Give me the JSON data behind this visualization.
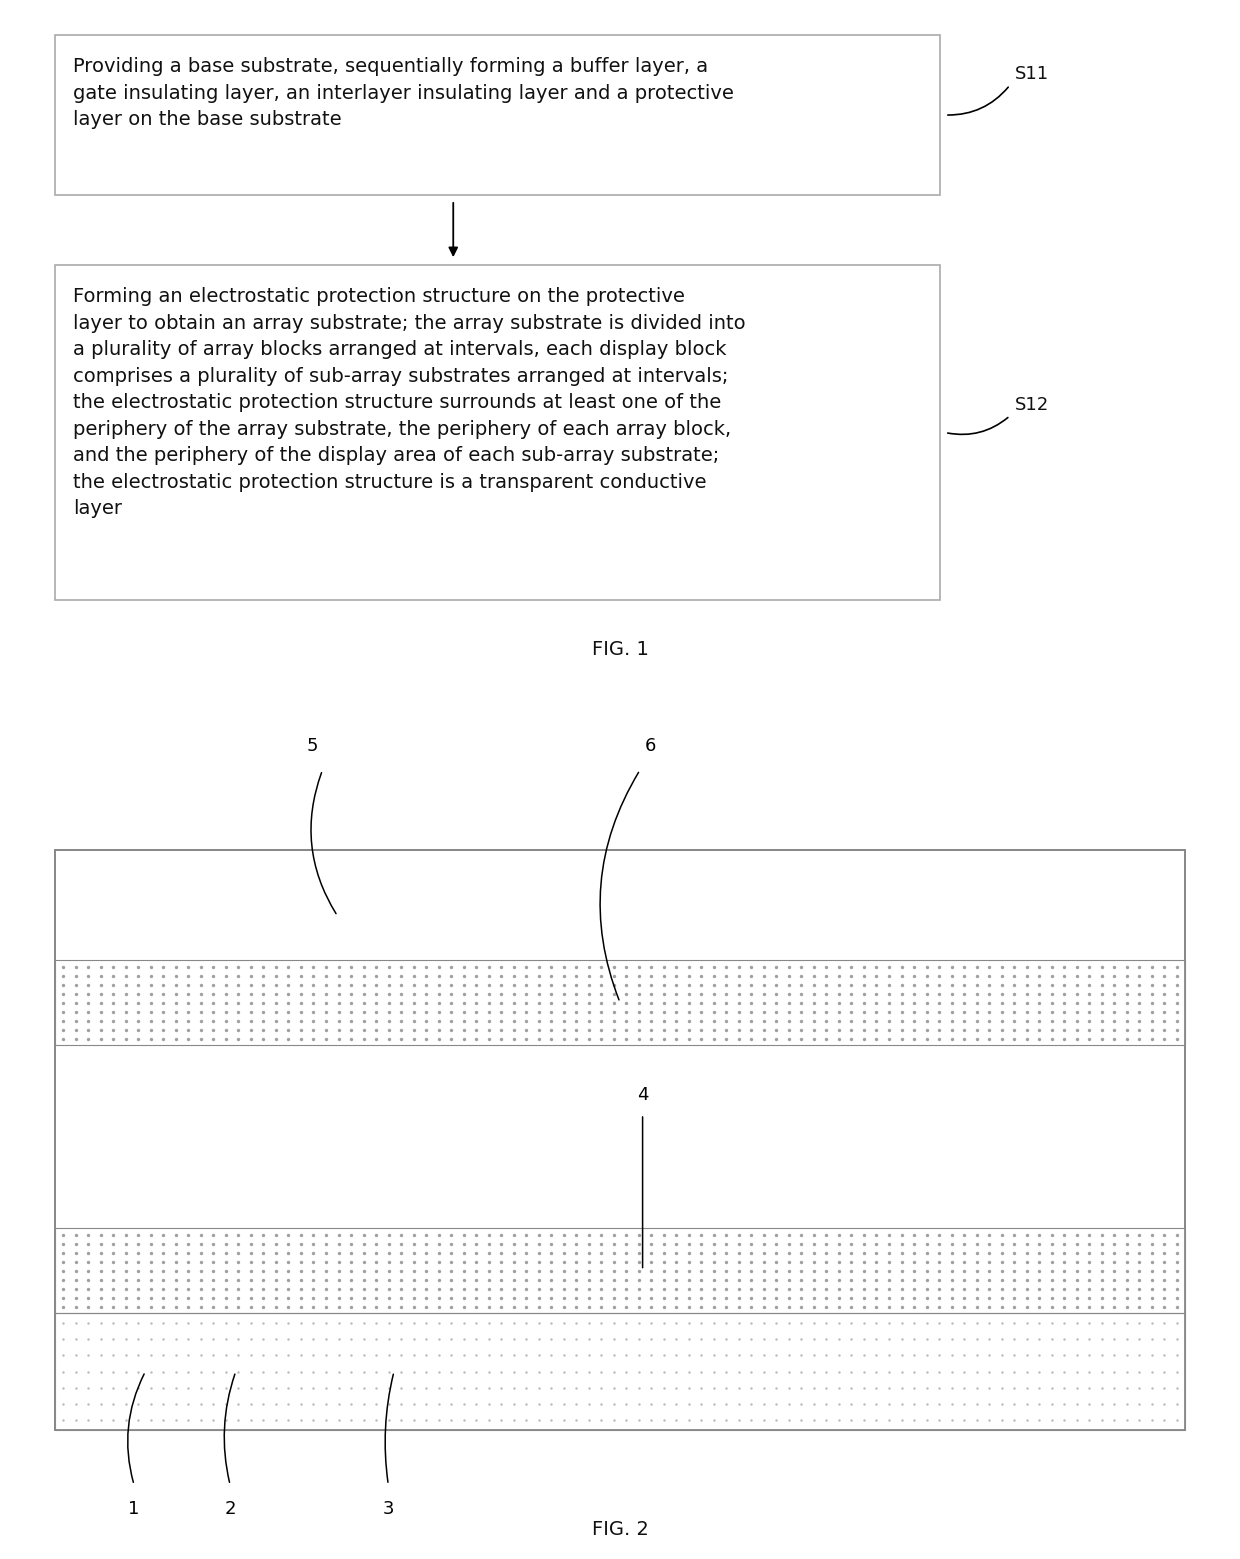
{
  "fig1": {
    "box1_text": "Providing a base substrate, sequentially forming a buffer layer, a\ngate insulating layer, an interlayer insulating layer and a protective\nlayer on the base substrate",
    "box1_label": "S11",
    "box2_text": "Forming an electrostatic protection structure on the protective\nlayer to obtain an array substrate; the array substrate is divided into\na plurality of array blocks arranged at intervals, each display block\ncomprises a plurality of sub-array substrates arranged at intervals;\nthe electrostatic protection structure surrounds at least one of the\nperiphery of the array substrate, the periphery of each array block,\nand the periphery of the display area of each sub-array substrate;\nthe electrostatic protection structure is a transparent conductive\nlayer",
    "box1_label_text": "S11",
    "box2_label_text": "S12",
    "fig_label": "FIG. 1"
  },
  "fig2": {
    "fig_label": "FIG. 2"
  },
  "background_color": "#ffffff",
  "text_color": "#111111",
  "box_border_color": "#aaaaaa",
  "font_size_body": 14,
  "font_size_label": 13,
  "font_size_fig": 14
}
